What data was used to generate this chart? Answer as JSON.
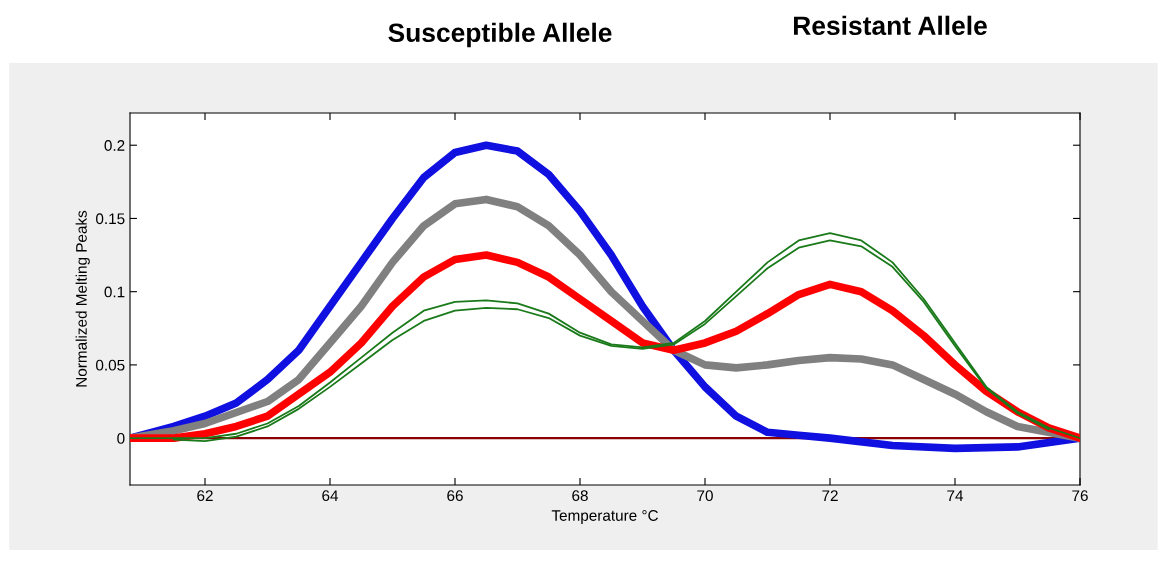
{
  "chart_data": {
    "type": "line",
    "xlabel": "Temperature °C",
    "ylabel": "Normalized Melting Peaks",
    "annotations": [
      "Susceptible Allele",
      "Resistant Allele"
    ],
    "xlim": [
      60.8,
      76
    ],
    "xticks": [
      62,
      64,
      66,
      68,
      70,
      72,
      74,
      76
    ],
    "ylim": [
      -0.032,
      0.222
    ],
    "yticks": [
      0,
      0.05,
      0.1,
      0.15,
      0.2
    ],
    "grid": false,
    "marker": "none",
    "line_style": "solid",
    "ref_lines": [
      {
        "axis": "y",
        "value": 0,
        "color": "#8b0000",
        "line_style": "solid"
      }
    ],
    "series": [
      {
        "color": "#1010e0",
        "x": [
          60.8,
          61.5,
          62,
          62.5,
          63,
          63.5,
          64,
          64.5,
          65,
          65.5,
          66,
          66.5,
          67,
          67.5,
          68,
          68.5,
          69,
          69.5,
          70,
          70.5,
          71,
          71.5,
          72,
          73,
          74,
          75,
          76
        ],
        "values": [
          0,
          0.008,
          0.015,
          0.024,
          0.04,
          0.06,
          0.09,
          0.12,
          0.15,
          0.178,
          0.195,
          0.2,
          0.196,
          0.18,
          0.155,
          0.125,
          0.09,
          0.06,
          0.035,
          0.015,
          0.004,
          0.002,
          0,
          -0.005,
          -0.007,
          -0.006,
          0
        ]
      },
      {
        "color": "#808080",
        "x": [
          60.8,
          61.5,
          62,
          63,
          63.5,
          64,
          64.5,
          65,
          65.5,
          66,
          66.5,
          67,
          67.5,
          68,
          68.5,
          69,
          69.5,
          70,
          70.5,
          71,
          71.5,
          72,
          72.5,
          73,
          73.5,
          74,
          74.5,
          75,
          76
        ],
        "values": [
          0,
          0.005,
          0.01,
          0.025,
          0.04,
          0.065,
          0.09,
          0.12,
          0.145,
          0.16,
          0.163,
          0.158,
          0.145,
          0.125,
          0.1,
          0.08,
          0.06,
          0.05,
          0.048,
          0.05,
          0.053,
          0.055,
          0.054,
          0.05,
          0.04,
          0.03,
          0.018,
          0.008,
          0
        ]
      },
      {
        "color": "#ff0000",
        "x": [
          60.8,
          61.5,
          62,
          62.5,
          63,
          63.5,
          64,
          64.5,
          65,
          65.5,
          66,
          66.5,
          67,
          67.5,
          68,
          68.5,
          69,
          69.5,
          70,
          70.5,
          71,
          71.5,
          72,
          72.5,
          73,
          73.5,
          74,
          74.5,
          75,
          75.5,
          76
        ],
        "values": [
          0,
          0,
          0.003,
          0.008,
          0.015,
          0.03,
          0.045,
          0.065,
          0.09,
          0.11,
          0.122,
          0.125,
          0.12,
          0.11,
          0.095,
          0.08,
          0.065,
          0.06,
          0.065,
          0.073,
          0.085,
          0.098,
          0.105,
          0.1,
          0.087,
          0.07,
          0.05,
          0.032,
          0.018,
          0.007,
          0
        ]
      },
      {
        "color": "#1a7a1a",
        "x": [
          60.8,
          62,
          62.5,
          63,
          63.5,
          64,
          64.5,
          65,
          65.5,
          66,
          66.5,
          67,
          67.5,
          68,
          68.5,
          69,
          69.5,
          70,
          70.5,
          71,
          71.5,
          72,
          72.5,
          73,
          73.5,
          74,
          74.5,
          75,
          75.5,
          76
        ],
        "values": [
          0,
          0,
          0.003,
          0.01,
          0.022,
          0.038,
          0.055,
          0.072,
          0.087,
          0.093,
          0.094,
          0.092,
          0.085,
          0.072,
          0.064,
          0.062,
          0.065,
          0.08,
          0.1,
          0.12,
          0.135,
          0.14,
          0.135,
          0.12,
          0.095,
          0.065,
          0.035,
          0.018,
          0.007,
          0
        ]
      },
      {
        "color": "#1a7a1a",
        "x": [
          61.5,
          62,
          62.5,
          63,
          63.5,
          64,
          64.5,
          65,
          65.5,
          66,
          66.5,
          67,
          67.5,
          68,
          68.5,
          69,
          69.5,
          70,
          70.5,
          71,
          71.5,
          72,
          72.5,
          73,
          73.5,
          74,
          74.5,
          75,
          75.5
        ],
        "values": [
          -0.001,
          -0.002,
          0.001,
          0.008,
          0.02,
          0.035,
          0.051,
          0.067,
          0.08,
          0.087,
          0.089,
          0.088,
          0.082,
          0.07,
          0.063,
          0.061,
          0.064,
          0.078,
          0.097,
          0.116,
          0.13,
          0.135,
          0.131,
          0.117,
          0.093,
          0.063,
          0.034,
          0.017,
          0.006
        ]
      }
    ]
  }
}
